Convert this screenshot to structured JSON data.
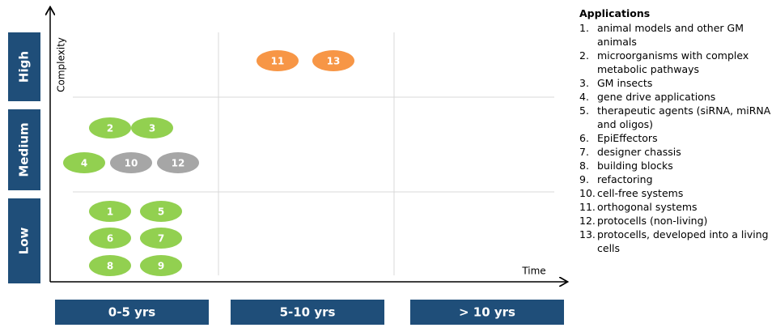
{
  "y_levels": [
    "High",
    "Medium",
    "Low"
  ],
  "y_axis_label": "Complexity",
  "x_axis_label": "Time",
  "x_periods": [
    "0-5 yrs",
    "5-10 yrs",
    "> 10 yrs"
  ],
  "nodes": [
    {
      "label": "11",
      "color": "#f79646"
    },
    {
      "label": "13",
      "color": "#f79646"
    },
    {
      "label": "2",
      "color": "#92d050"
    },
    {
      "label": "3",
      "color": "#92d050"
    },
    {
      "label": "4",
      "color": "#92d050"
    },
    {
      "label": "10",
      "color": "#a6a6a6"
    },
    {
      "label": "12",
      "color": "#a6a6a6"
    },
    {
      "label": "1",
      "color": "#92d050"
    },
    {
      "label": "5",
      "color": "#92d050"
    },
    {
      "label": "6",
      "color": "#92d050"
    },
    {
      "label": "7",
      "color": "#92d050"
    },
    {
      "label": "8",
      "color": "#92d050"
    },
    {
      "label": "9",
      "color": "#92d050"
    }
  ],
  "applications": {
    "title": "Applications",
    "items": [
      {
        "number": "1.",
        "text": "animal models and other GM animals"
      },
      {
        "number": "2.",
        "text": "microorganisms with complex metabolic pathways"
      },
      {
        "number": "3.",
        "text": "GM insects"
      },
      {
        "number": "4.",
        "text": "gene drive applications"
      },
      {
        "number": "5.",
        "text": "therapeutic agents (siRNA, miRNA and oligos)"
      },
      {
        "number": "6.",
        "text": "EpiEffectors"
      },
      {
        "number": "7.",
        "text": "designer chassis"
      },
      {
        "number": "8.",
        "text": "building blocks"
      },
      {
        "number": "9.",
        "text": "refactoring"
      },
      {
        "number": "10.",
        "text": "cell-free systems"
      },
      {
        "number": "11.",
        "text": "orthogonal systems"
      },
      {
        "number": "12.",
        "text": "protocells (non-living)"
      },
      {
        "number": "13.",
        "text": "protocells, developed into a living cells"
      }
    ]
  }
}
